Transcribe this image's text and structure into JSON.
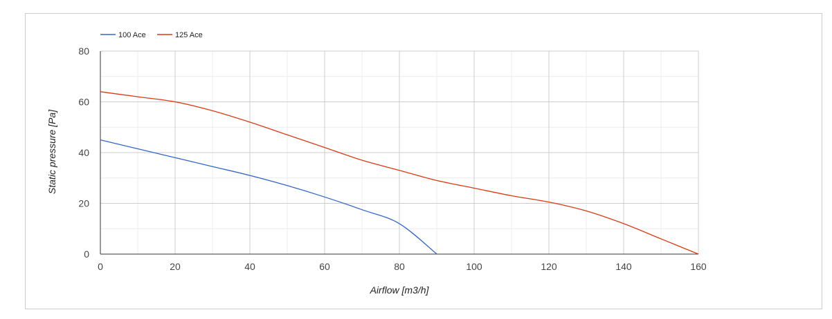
{
  "chart_data": {
    "type": "line",
    "title": "",
    "xlabel": "Airflow [m3/h]",
    "ylabel": "Static pressure [Pa]",
    "xlim": [
      0,
      160
    ],
    "ylim": [
      0,
      80
    ],
    "x_ticks": [
      0,
      20,
      40,
      60,
      80,
      100,
      120,
      140,
      160
    ],
    "y_ticks": [
      0,
      20,
      40,
      60,
      80
    ],
    "grid": true,
    "legend_position": "top-left",
    "series": [
      {
        "name": "100 Ace",
        "color": "#3366cc",
        "x": [
          0,
          10,
          20,
          30,
          40,
          50,
          60,
          70,
          80,
          90
        ],
        "y": [
          45,
          41.5,
          38,
          34.5,
          31,
          27,
          22.5,
          17.5,
          12,
          0
        ]
      },
      {
        "name": "125 Ace",
        "color": "#dc3912",
        "x": [
          0,
          10,
          20,
          30,
          40,
          50,
          60,
          70,
          80,
          90,
          100,
          110,
          120,
          130,
          140,
          150,
          160
        ],
        "y": [
          64,
          62,
          60,
          56.5,
          52,
          47,
          42,
          37,
          33,
          29,
          26,
          23,
          20.5,
          17,
          12,
          6,
          0
        ]
      }
    ]
  }
}
